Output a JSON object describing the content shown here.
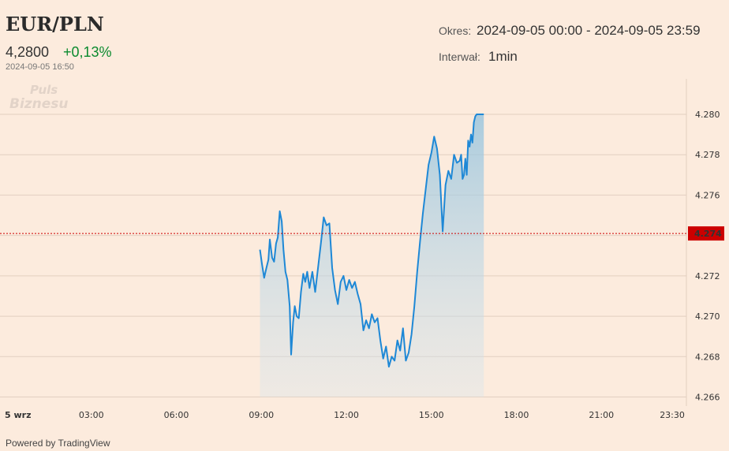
{
  "header": {
    "symbol": "EUR/PLN",
    "price": "4,2800",
    "change": "+0,13%",
    "timestamp": "2024-09-05 16:50",
    "logo_text_1": "Puls",
    "logo_text_2": "Biznesu",
    "okres_label": "Okres:",
    "okres_value": "2024-09-05 00:00 - 2024-09-05 23:59",
    "interwal_label": "Interwał:",
    "interwal_value": "1min"
  },
  "footer": {
    "powered": "Powered by TradingView"
  },
  "colors": {
    "background": "#fcebdd",
    "line": "#1e88d6",
    "positive": "#0a8a2e",
    "marker": "#cc0000",
    "grid": "#e2cfc0"
  },
  "chart_data": {
    "type": "area",
    "title": "EUR/PLN",
    "xlabel": "",
    "ylabel": "",
    "x_unit": "hours",
    "xlim": [
      0,
      24
    ],
    "ylim": [
      4.266,
      4.281
    ],
    "x_tick_labels": [
      "5 wrz",
      "03:00",
      "06:00",
      "09:00",
      "12:00",
      "15:00",
      "18:00",
      "21:00",
      "23:30"
    ],
    "x_ticks": [
      0,
      3,
      6,
      9,
      12,
      15,
      18,
      21,
      23.5
    ],
    "y_ticks": [
      4.266,
      4.268,
      4.27,
      4.272,
      4.274,
      4.276,
      4.278,
      4.28
    ],
    "y_tick_labels": [
      "4.266",
      "4.268",
      "4.270",
      "4.272",
      "4.274",
      "4.276",
      "4.278",
      "4.280"
    ],
    "marker_line": {
      "value": 4.2741,
      "label": "4.274"
    },
    "grid": true,
    "series": [
      {
        "x": [
          8.95,
          9.02,
          9.1,
          9.18,
          9.25,
          9.3,
          9.38,
          9.45,
          9.52,
          9.58,
          9.65,
          9.72,
          9.78,
          9.85,
          9.92,
          10.0,
          10.05,
          10.12,
          10.18,
          10.25,
          10.32,
          10.4,
          10.48,
          10.55,
          10.62,
          10.7,
          10.8,
          10.9,
          11.0,
          11.1,
          11.2,
          11.3,
          11.4,
          11.5,
          11.6,
          11.7,
          11.8,
          11.9,
          12.0,
          12.1,
          12.2,
          12.3,
          12.4,
          12.5,
          12.6,
          12.7,
          12.8,
          12.9,
          13.0,
          13.1,
          13.2,
          13.3,
          13.4,
          13.5,
          13.6,
          13.7,
          13.8,
          13.9,
          14.0,
          14.1,
          14.2,
          14.3,
          14.4,
          14.5,
          14.6,
          14.7,
          14.8,
          14.9,
          15.0,
          15.1,
          15.2,
          15.3,
          15.4,
          15.5,
          15.6,
          15.7,
          15.8,
          15.9,
          16.0,
          16.05,
          16.1,
          16.15,
          16.2,
          16.25,
          16.3,
          16.35,
          16.4,
          16.45,
          16.5,
          16.55,
          16.6,
          16.65,
          16.7,
          16.75,
          16.8,
          16.85
        ],
        "y": [
          4.2733,
          4.2726,
          4.2719,
          4.2724,
          4.2728,
          4.2738,
          4.2729,
          4.2727,
          4.2736,
          4.2739,
          4.2752,
          4.2747,
          4.2733,
          4.2722,
          4.2718,
          4.2705,
          4.2681,
          4.2697,
          4.2705,
          4.27,
          4.2699,
          4.2712,
          4.2721,
          4.2717,
          4.2722,
          4.2714,
          4.2722,
          4.2712,
          4.2724,
          4.2736,
          4.2749,
          4.2745,
          4.2746,
          4.2724,
          4.2713,
          4.2706,
          4.2717,
          4.272,
          4.2713,
          4.2718,
          4.2714,
          4.2717,
          4.2711,
          4.2706,
          4.2693,
          4.2698,
          4.2694,
          4.2701,
          4.2697,
          4.2699,
          4.2688,
          4.2679,
          4.2685,
          4.2675,
          4.268,
          4.2678,
          4.2688,
          4.2683,
          4.2694,
          4.2678,
          4.2682,
          4.2691,
          4.2705,
          4.2722,
          4.2737,
          4.2751,
          4.2763,
          4.2775,
          4.2781,
          4.2789,
          4.2783,
          4.277,
          4.2742,
          4.2765,
          4.2772,
          4.2768,
          4.278,
          4.2776,
          4.2777,
          4.278,
          4.2768,
          4.277,
          4.2778,
          4.277,
          4.2787,
          4.2784,
          4.279,
          4.2786,
          4.2796,
          4.2799,
          4.28,
          4.28,
          4.28,
          4.28,
          4.28,
          4.28
        ]
      }
    ]
  }
}
